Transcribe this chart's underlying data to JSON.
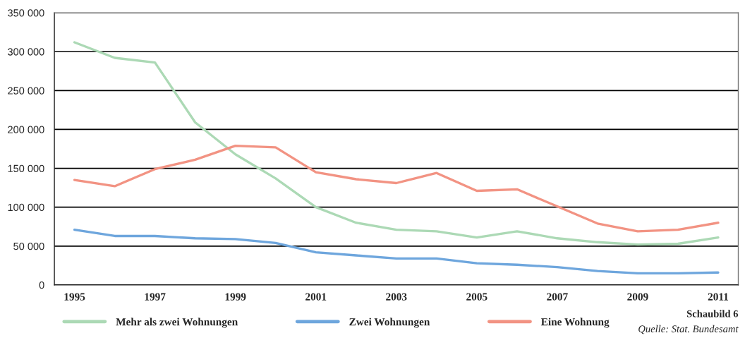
{
  "chart_data": {
    "type": "line",
    "categories": [
      "1995",
      null,
      "1997",
      null,
      "1999",
      null,
      "2001",
      null,
      "2003",
      null,
      "2005",
      null,
      "2007",
      null,
      "2009",
      null,
      "2011"
    ],
    "series": [
      {
        "name": "Mehr als zwei Wohnungen",
        "color": "#acd9b5",
        "values": [
          312000,
          292000,
          286000,
          209000,
          168000,
          137000,
          100000,
          80000,
          71000,
          69000,
          61000,
          69000,
          60000,
          55000,
          52000,
          53000,
          61000
        ]
      },
      {
        "name": "Zwei Wohnungen",
        "color": "#6ea6dd",
        "values": [
          71000,
          63000,
          63000,
          60000,
          59000,
          54000,
          42000,
          38000,
          34000,
          34000,
          28000,
          26000,
          23000,
          18000,
          15000,
          15000,
          16000
        ]
      },
      {
        "name": "Eine Wohnung",
        "color": "#f29383",
        "values": [
          135000,
          127000,
          149000,
          161000,
          179000,
          177000,
          145000,
          136000,
          131000,
          144000,
          121000,
          123000,
          101000,
          79000,
          69000,
          71000,
          80000
        ]
      }
    ],
    "ylim": [
      0,
      350000
    ],
    "yticks": [
      0,
      {
        "value": 50000,
        "label": "50 000"
      },
      {
        "value": 100000,
        "label": "100 000"
      },
      {
        "value": 150000,
        "label": "150 000"
      },
      {
        "value": 200000,
        "label": "200 000"
      },
      {
        "value": 250000,
        "label": "250 000"
      },
      {
        "value": 300000,
        "label": "300 000"
      },
      {
        "value": 350000,
        "label": "350 000"
      }
    ],
    "grid": "y",
    "legend": "bottom",
    "marker": "none",
    "line_style": "solid",
    "annotations": [
      "Schaubild 6",
      "Quelle: Stat. Bundesamt"
    ]
  }
}
